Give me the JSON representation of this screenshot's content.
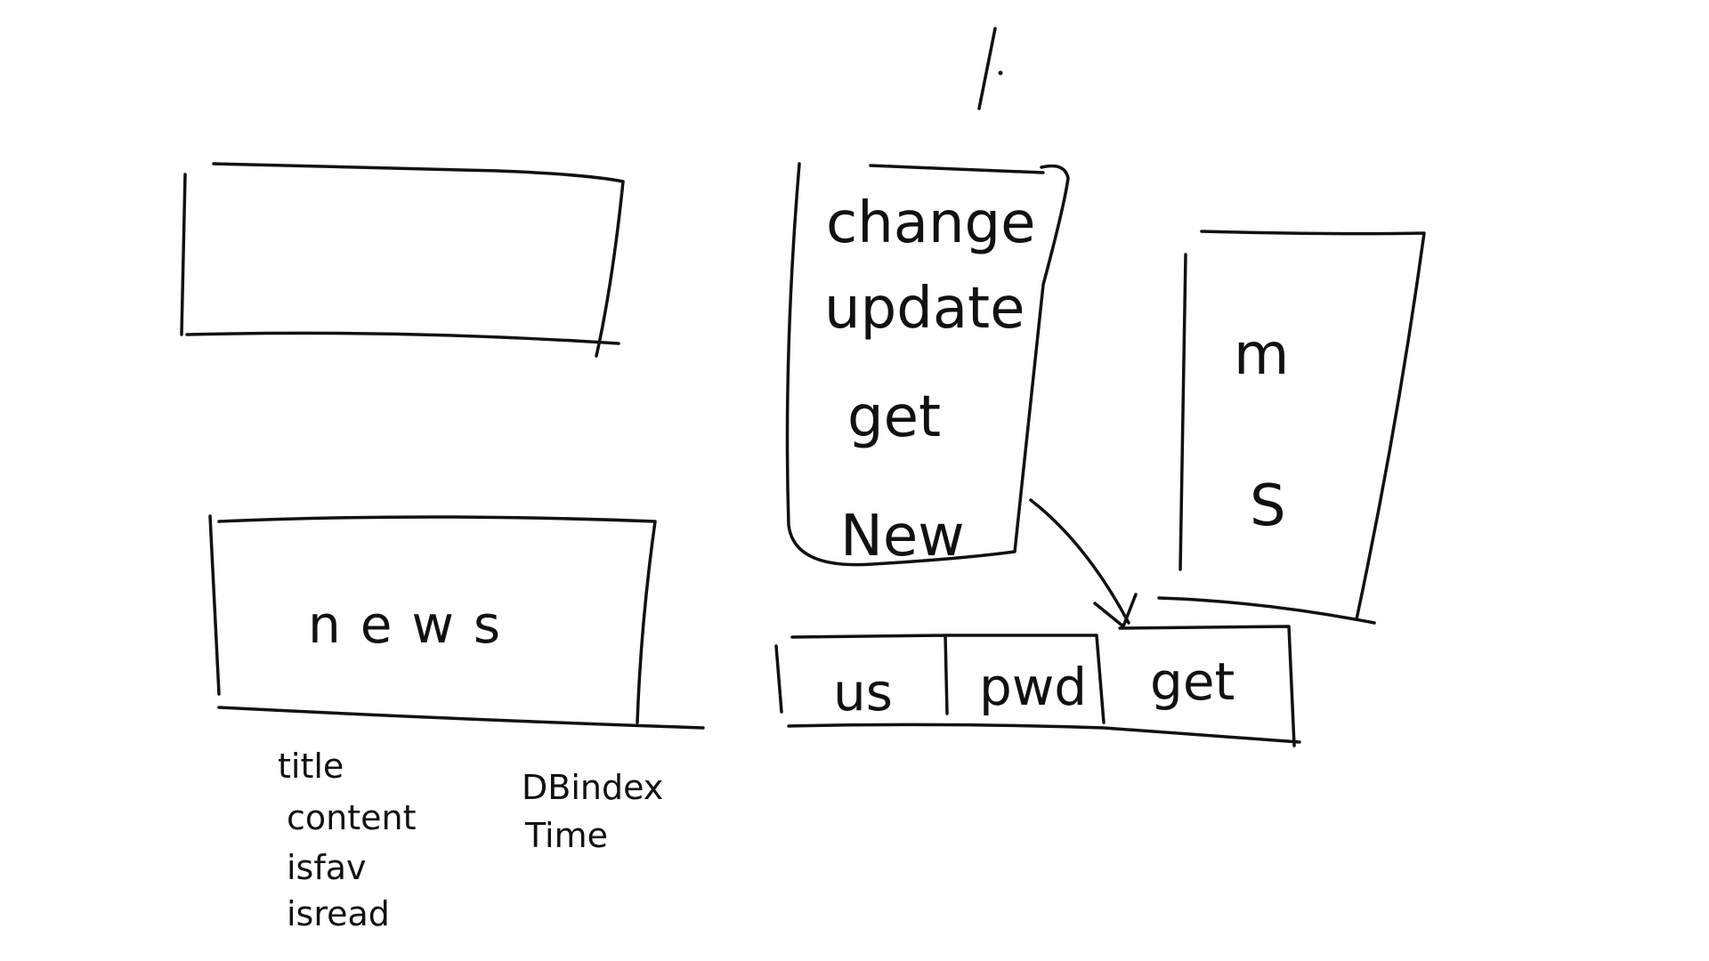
{
  "canvas": {
    "background": "#ffffff",
    "ink": "#111111"
  },
  "step_label": "1.",
  "left_top_box": {
    "label": ""
  },
  "news_box": {
    "label": "news",
    "fields": [
      "title",
      "content",
      "isfav",
      "isread"
    ],
    "extra_fields": [
      "DBindex",
      "Time"
    ]
  },
  "actions_box": {
    "items": [
      "change",
      "update",
      "get",
      "New"
    ]
  },
  "ms_box": {
    "letters": [
      "m",
      "S"
    ]
  },
  "form_row": {
    "cells": [
      "us",
      "pwd",
      "get"
    ]
  },
  "connector": {
    "from": "New",
    "to": "get"
  }
}
